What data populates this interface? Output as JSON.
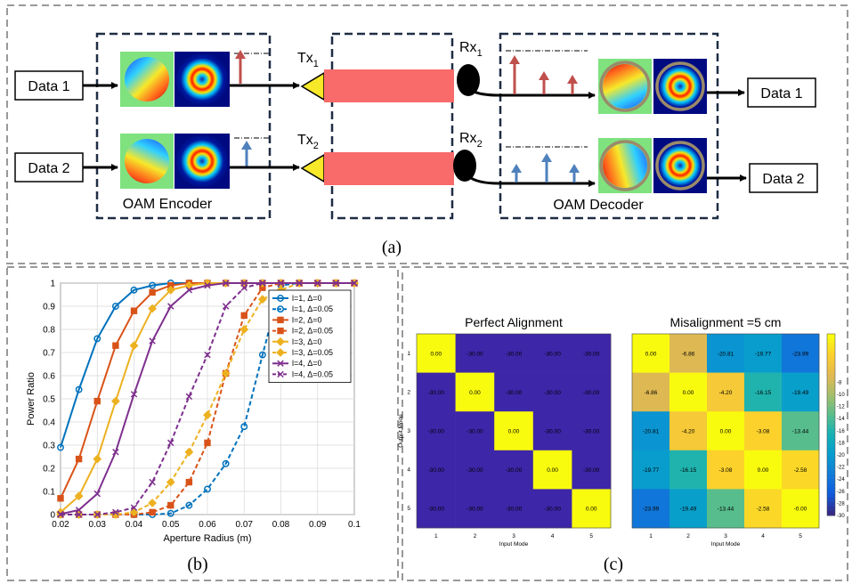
{
  "panel_a": {
    "label": "(a)",
    "input1": "Data 1",
    "input2": "Data 2",
    "output1": "Data 1",
    "output2": "Data 2",
    "encoder_label": "OAM Encoder",
    "decoder_label": "OAM Decoder",
    "tx1": "Tx",
    "tx1_sub": "1",
    "tx2": "Tx",
    "tx2_sub": "2",
    "rx1": "Rx",
    "rx1_sub": "1",
    "rx2": "Rx",
    "rx2_sub": "2",
    "colors": {
      "beam": "#f96a6a",
      "arrow_red": "#c0504d",
      "arrow_blue": "#4f81bd",
      "lens": "#f7e82a"
    }
  },
  "panel_b": {
    "label": "(b)",
    "chart_data": {
      "type": "line",
      "xlabel": "Aperture Radius (m)",
      "ylabel": "Power Ratio",
      "xlim": [
        0.02,
        0.1
      ],
      "ylim": [
        0,
        1
      ],
      "xticks": [
        "0.02",
        "0.03",
        "0.04",
        "0.05",
        "0.06",
        "0.07",
        "0.08",
        "0.09",
        "0.1"
      ],
      "yticks": [
        "0",
        "0.1",
        "0.2",
        "0.3",
        "0.4",
        "0.5",
        "0.6",
        "0.7",
        "0.8",
        "0.9",
        "1"
      ],
      "grid": true,
      "legend_position": "top-right",
      "x": [
        0.02,
        0.025,
        0.03,
        0.035,
        0.04,
        0.045,
        0.05,
        0.055,
        0.06,
        0.065,
        0.07,
        0.075,
        0.08,
        0.085,
        0.09,
        0.095,
        0.1
      ],
      "series": [
        {
          "name": "l=1, Δ=0",
          "legend": "l=1, Δ=0",
          "color": "#0072bd",
          "dash": false,
          "marker": "circle",
          "values": [
            0.29,
            0.54,
            0.76,
            0.9,
            0.97,
            0.99,
            1,
            1,
            1,
            1,
            1,
            1,
            1,
            1,
            1,
            1,
            1
          ]
        },
        {
          "name": "l=1, Δ=0.05",
          "legend": "l=1, Δ=0.05",
          "color": "#0072bd",
          "dash": true,
          "marker": "circle",
          "values": [
            0,
            0,
            0,
            0,
            0,
            0,
            0.005,
            0.04,
            0.11,
            0.22,
            0.38,
            0.69,
            0.99,
            1,
            1,
            1,
            1
          ]
        },
        {
          "name": "l=2, Δ=0",
          "legend": "l=2, Δ=0",
          "color": "#d95319",
          "dash": false,
          "marker": "square",
          "values": [
            0.07,
            0.24,
            0.49,
            0.73,
            0.88,
            0.96,
            0.99,
            1,
            1,
            1,
            1,
            1,
            1,
            1,
            1,
            1,
            1
          ]
        },
        {
          "name": "l=2, Δ=0.05",
          "legend": "l=2, Δ=0.05",
          "color": "#d95319",
          "dash": true,
          "marker": "square",
          "values": [
            0,
            0,
            0,
            0,
            0,
            0.01,
            0.04,
            0.14,
            0.31,
            0.61,
            0.86,
            0.98,
            1,
            1,
            1,
            1,
            1
          ]
        },
        {
          "name": "l=3, Δ=0",
          "legend": "l=3, Δ=0",
          "color": "#edb120",
          "dash": false,
          "marker": "diamond",
          "values": [
            0.01,
            0.08,
            0.24,
            0.49,
            0.73,
            0.89,
            0.97,
            0.99,
            1,
            1,
            1,
            1,
            1,
            1,
            1,
            1,
            1
          ]
        },
        {
          "name": "l=3, Δ=0.05",
          "legend": "l=3, Δ=0.05",
          "color": "#edb120",
          "dash": true,
          "marker": "diamond",
          "values": [
            0,
            0,
            0,
            0,
            0.01,
            0.05,
            0.14,
            0.27,
            0.43,
            0.61,
            0.8,
            0.93,
            0.97,
            1,
            1,
            1,
            1
          ]
        },
        {
          "name": "l=4, Δ=0",
          "legend": "l=4, Δ=0",
          "color": "#7e2f8e",
          "dash": false,
          "marker": "x",
          "values": [
            0.002,
            0.02,
            0.09,
            0.27,
            0.52,
            0.75,
            0.9,
            0.97,
            0.99,
            1,
            1,
            1,
            1,
            1,
            1,
            1,
            1
          ]
        },
        {
          "name": "l=4, Δ=0.05",
          "legend": "l=4, Δ=0.05",
          "color": "#7e2f8e",
          "dash": true,
          "marker": "x",
          "values": [
            0,
            0,
            0,
            0.01,
            0.03,
            0.14,
            0.31,
            0.51,
            0.69,
            0.9,
            0.98,
            1,
            1,
            1,
            1,
            1,
            1
          ]
        }
      ]
    }
  },
  "panel_c": {
    "label": "(c)",
    "chart_data": [
      {
        "type": "heatmap",
        "title": "Perfect Alignment",
        "xlabel": "Input Mode",
        "ylabel": "Output Mode",
        "xticks": [
          "1",
          "2",
          "3",
          "4",
          "5"
        ],
        "yticks": [
          "1",
          "2",
          "3",
          "4",
          "5"
        ],
        "labels": [
          [
            "0.00",
            "-30.00",
            "-30.00",
            "-30.00",
            "-30.00"
          ],
          [
            "-30.00",
            "0.00",
            "-30.00",
            "-30.00",
            "-30.00"
          ],
          [
            "-30.00",
            "-30.00",
            "0.00",
            "-30.00",
            "-30.00"
          ],
          [
            "-30.00",
            "-30.00",
            "-30.00",
            "0.00",
            "-30.00"
          ],
          [
            "-30.00",
            "-30.00",
            "-30.00",
            "-30.00",
            "0.00"
          ]
        ],
        "values": [
          [
            0,
            -30,
            -30,
            -30,
            -30
          ],
          [
            -30,
            0,
            -30,
            -30,
            -30
          ],
          [
            -30,
            -30,
            0,
            -30,
            -30
          ],
          [
            -30,
            -30,
            -30,
            0,
            -30
          ],
          [
            -30,
            -30,
            -30,
            -30,
            0
          ]
        ]
      },
      {
        "type": "heatmap",
        "title": "Misalignment =5 cm",
        "xlabel": "Input Mode",
        "ylabel": "",
        "xticks": [
          "1",
          "2",
          "3",
          "4",
          "5"
        ],
        "yticks": [],
        "labels": [
          [
            "0.00",
            "-6.86",
            "-20.81",
            "-19.77",
            "-23.99"
          ],
          [
            "-6.86",
            "0.00",
            "-4.20",
            "-16.15",
            "-19.49"
          ],
          [
            "-20.81",
            "-4.20",
            "0.00",
            "-3.08",
            "-13.44"
          ],
          [
            "-19.77",
            "-16.15",
            "-3.08",
            "0.00",
            "-2.58"
          ],
          [
            "-23.99",
            "-19.49",
            "-13.44",
            "-2.58",
            "-0.00"
          ]
        ],
        "values": [
          [
            0,
            -6.86,
            -20.81,
            -19.77,
            -23.99
          ],
          [
            -6.86,
            0,
            -4.2,
            -16.15,
            -19.49
          ],
          [
            -20.81,
            -4.2,
            0,
            -3.08,
            -13.44
          ],
          [
            -19.77,
            -16.15,
            -3.08,
            0,
            -2.58
          ],
          [
            -23.99,
            -19.49,
            -13.44,
            -2.58,
            -0.0
          ]
        ],
        "colorbar_ticks": [
          "-8",
          "-10",
          "-12",
          "-14",
          "-16",
          "-18",
          "-20",
          "-22",
          "-24",
          "-26",
          "-28",
          "-30"
        ]
      }
    ]
  }
}
